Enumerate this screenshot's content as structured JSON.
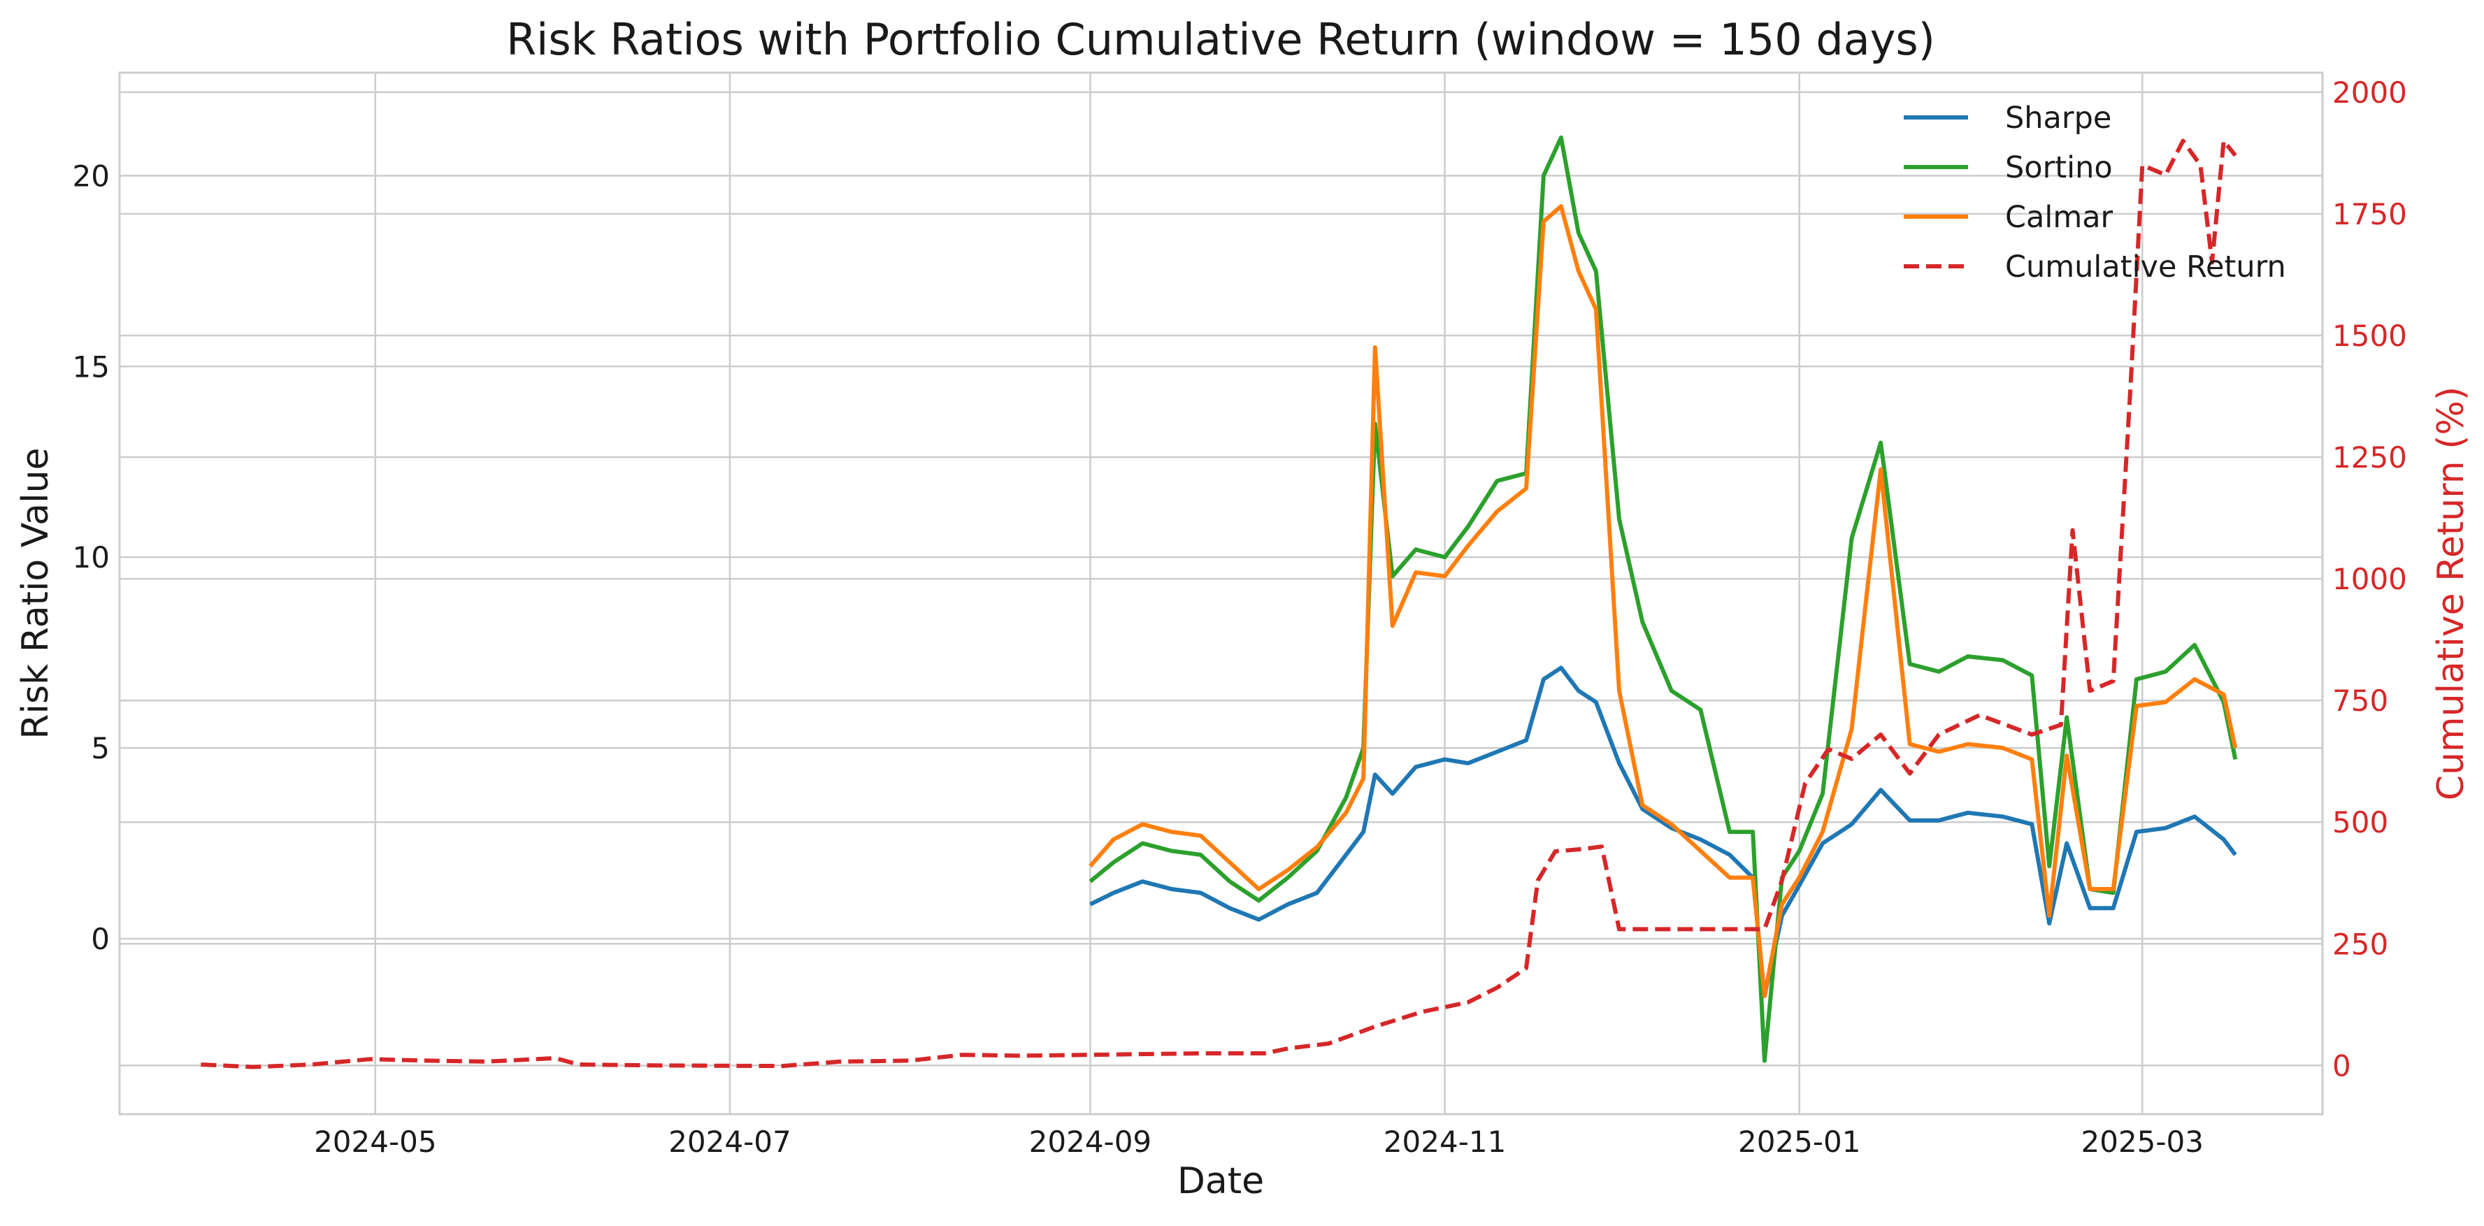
{
  "chart_data": {
    "type": "line",
    "title": "Risk Ratios with Portfolio Cumulative Return (window = 150 days)",
    "xlabel": "Date",
    "ylabel": "Risk Ratio Value",
    "y2label": "Cumulative Return (%)",
    "x_ticks": [
      "2024-05",
      "2024-07",
      "2024-09",
      "2024-11",
      "2025-01",
      "2025-03"
    ],
    "y_ticks": [
      "0",
      "5",
      "10",
      "15",
      "20"
    ],
    "y2_ticks": [
      "0",
      "250",
      "500",
      "750",
      "1000",
      "1250",
      "1500",
      "1750",
      "2000"
    ],
    "xlim": [
      "2024-03-18",
      "2025-04-01"
    ],
    "ylim": [
      -4.6,
      22.7
    ],
    "y2lim": [
      -100,
      2040
    ],
    "grid": true,
    "legend_position": "top-right",
    "colors": {
      "Sharpe": "#1f77b4",
      "Sortino": "#2ca02c",
      "Calmar": "#ff7f0e",
      "Cumulative Return": "#d62728"
    },
    "series": [
      {
        "name": "Sharpe",
        "axis": "left",
        "style": "solid",
        "x": [
          "2024-09-01",
          "2024-09-05",
          "2024-09-10",
          "2024-09-15",
          "2024-09-20",
          "2024-09-25",
          "2024-09-30",
          "2024-10-05",
          "2024-10-10",
          "2024-10-15",
          "2024-10-18",
          "2024-10-20",
          "2024-10-23",
          "2024-10-27",
          "2024-11-01",
          "2024-11-05",
          "2024-11-10",
          "2024-11-15",
          "2024-11-18",
          "2024-11-21",
          "2024-11-24",
          "2024-11-27",
          "2024-12-01",
          "2024-12-05",
          "2024-12-10",
          "2024-12-15",
          "2024-12-20",
          "2024-12-24",
          "2024-12-26",
          "2024-12-29",
          "2025-01-01",
          "2025-01-05",
          "2025-01-10",
          "2025-01-15",
          "2025-01-20",
          "2025-01-25",
          "2025-01-30",
          "2025-02-05",
          "2025-02-10",
          "2025-02-13",
          "2025-02-16",
          "2025-02-20",
          "2025-02-24",
          "2025-02-28",
          "2025-03-05",
          "2025-03-10",
          "2025-03-15",
          "2025-03-17"
        ],
        "values": [
          0.9,
          1.2,
          1.5,
          1.3,
          1.2,
          0.8,
          0.5,
          0.9,
          1.2,
          2.2,
          2.8,
          4.3,
          3.8,
          4.5,
          4.7,
          4.6,
          4.9,
          5.2,
          6.8,
          7.1,
          6.5,
          6.2,
          4.6,
          3.4,
          2.9,
          2.6,
          2.2,
          1.6,
          -1.5,
          0.6,
          1.4,
          2.5,
          3.0,
          3.9,
          3.1,
          3.1,
          3.3,
          3.2,
          3.0,
          0.4,
          2.5,
          0.8,
          0.8,
          2.8,
          2.9,
          3.2,
          2.6,
          2.2
        ]
      },
      {
        "name": "Sortino",
        "axis": "left",
        "style": "solid",
        "x": [
          "2024-09-01",
          "2024-09-05",
          "2024-09-10",
          "2024-09-15",
          "2024-09-20",
          "2024-09-25",
          "2024-09-30",
          "2024-10-05",
          "2024-10-10",
          "2024-10-15",
          "2024-10-18",
          "2024-10-20",
          "2024-10-23",
          "2024-10-27",
          "2024-11-01",
          "2024-11-05",
          "2024-11-10",
          "2024-11-15",
          "2024-11-18",
          "2024-11-21",
          "2024-11-24",
          "2024-11-27",
          "2024-12-01",
          "2024-12-05",
          "2024-12-10",
          "2024-12-15",
          "2024-12-20",
          "2024-12-24",
          "2024-12-26",
          "2024-12-29",
          "2025-01-01",
          "2025-01-05",
          "2025-01-10",
          "2025-01-15",
          "2025-01-20",
          "2025-01-25",
          "2025-01-30",
          "2025-02-05",
          "2025-02-10",
          "2025-02-13",
          "2025-02-16",
          "2025-02-20",
          "2025-02-24",
          "2025-02-28",
          "2025-03-05",
          "2025-03-10",
          "2025-03-15",
          "2025-03-17"
        ],
        "values": [
          1.5,
          2.0,
          2.5,
          2.3,
          2.2,
          1.5,
          1.0,
          1.6,
          2.3,
          3.7,
          5.0,
          13.5,
          9.5,
          10.2,
          10.0,
          10.8,
          12.0,
          12.2,
          20.0,
          21.0,
          18.5,
          17.5,
          11.0,
          8.3,
          6.5,
          6.0,
          2.8,
          2.8,
          -3.2,
          1.6,
          2.3,
          3.8,
          10.5,
          13.0,
          7.2,
          7.0,
          7.4,
          7.3,
          6.9,
          1.9,
          5.8,
          1.3,
          1.2,
          6.8,
          7.0,
          7.7,
          6.2,
          4.7
        ]
      },
      {
        "name": "Calmar",
        "axis": "left",
        "style": "solid",
        "x": [
          "2024-09-01",
          "2024-09-05",
          "2024-09-10",
          "2024-09-15",
          "2024-09-20",
          "2024-09-25",
          "2024-09-30",
          "2024-10-05",
          "2024-10-10",
          "2024-10-15",
          "2024-10-18",
          "2024-10-20",
          "2024-10-23",
          "2024-10-27",
          "2024-11-01",
          "2024-11-05",
          "2024-11-10",
          "2024-11-15",
          "2024-11-18",
          "2024-11-21",
          "2024-11-24",
          "2024-11-27",
          "2024-12-01",
          "2024-12-05",
          "2024-12-10",
          "2024-12-15",
          "2024-12-20",
          "2024-12-24",
          "2024-12-26",
          "2024-12-29",
          "2025-01-01",
          "2025-01-05",
          "2025-01-10",
          "2025-01-15",
          "2025-01-20",
          "2025-01-25",
          "2025-01-30",
          "2025-02-05",
          "2025-02-10",
          "2025-02-13",
          "2025-02-16",
          "2025-02-20",
          "2025-02-24",
          "2025-02-28",
          "2025-03-05",
          "2025-03-10",
          "2025-03-15",
          "2025-03-17"
        ],
        "values": [
          1.9,
          2.6,
          3.0,
          2.8,
          2.7,
          2.0,
          1.3,
          1.8,
          2.4,
          3.3,
          4.2,
          15.5,
          8.2,
          9.6,
          9.5,
          10.3,
          11.2,
          11.8,
          18.8,
          19.2,
          17.5,
          16.5,
          6.5,
          3.5,
          3.0,
          2.3,
          1.6,
          1.6,
          -1.5,
          0.9,
          1.6,
          2.8,
          5.5,
          12.3,
          5.1,
          4.9,
          5.1,
          5.0,
          4.7,
          0.6,
          4.8,
          1.3,
          1.3,
          6.1,
          6.2,
          6.8,
          6.4,
          5.0
        ]
      },
      {
        "name": "Cumulative Return",
        "axis": "right",
        "style": "dashed",
        "x": [
          "2024-04-01",
          "2024-04-10",
          "2024-04-20",
          "2024-04-30",
          "2024-05-10",
          "2024-05-20",
          "2024-06-01",
          "2024-06-05",
          "2024-06-20",
          "2024-07-10",
          "2024-07-20",
          "2024-08-01",
          "2024-08-10",
          "2024-08-20",
          "2024-09-01",
          "2024-09-20",
          "2024-10-01",
          "2024-10-05",
          "2024-10-12",
          "2024-10-20",
          "2024-10-28",
          "2024-11-05",
          "2024-11-10",
          "2024-11-15",
          "2024-11-17",
          "2024-11-20",
          "2024-11-25",
          "2024-11-28",
          "2024-12-01",
          "2024-12-10",
          "2024-12-20",
          "2024-12-26",
          "2024-12-29",
          "2025-01-02",
          "2025-01-06",
          "2025-01-10",
          "2025-01-15",
          "2025-01-20",
          "2025-01-25",
          "2025-02-01",
          "2025-02-10",
          "2025-02-15",
          "2025-02-17",
          "2025-02-20",
          "2025-02-24",
          "2025-02-27",
          "2025-03-01",
          "2025-03-05",
          "2025-03-08",
          "2025-03-11",
          "2025-03-13",
          "2025-03-15",
          "2025-03-17"
        ],
        "values": [
          2,
          -3,
          2,
          13,
          10,
          8,
          15,
          2,
          0,
          -1,
          8,
          10,
          22,
          20,
          22,
          25,
          25,
          35,
          45,
          80,
          110,
          130,
          160,
          200,
          380,
          440,
          445,
          450,
          280,
          280,
          280,
          280,
          380,
          580,
          650,
          630,
          680,
          600,
          680,
          720,
          680,
          700,
          1100,
          770,
          790,
          1400,
          1850,
          1830,
          1900,
          1850,
          1650,
          1900,
          1870
        ]
      }
    ]
  }
}
